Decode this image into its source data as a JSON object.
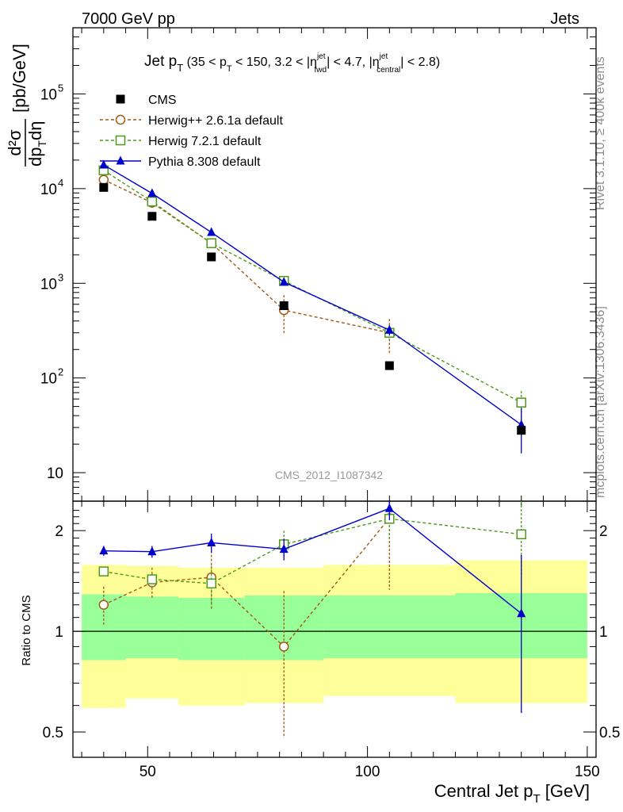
{
  "header": {
    "left": "7000 GeV pp",
    "right": "Jets"
  },
  "side_text": {
    "top": "Rivet 3.1.10, ≥ 400k events",
    "bottom": "mcplots.cern.ch [arXiv:1306.3436]"
  },
  "chart_data": {
    "type": "scatter",
    "title": "Jet pT (35 < pT < 150, 3.2 < |ηfwd jet| < 4.7, |ηcentral jet| < 2.8)",
    "title_parts": {
      "main": "Jet p",
      "main_sub": "T",
      "open": " (35 < p",
      "sub_t": "T",
      "mid1": " < 150, 3.2 < |η",
      "sup_jet1": "jet",
      "sub_fwd": "fwd",
      "mid2": "| < 4.7, |η",
      "sup_jet2": "jet",
      "sub_central": "central",
      "close": "| < 2.8)"
    },
    "watermark": "CMS_2012_I1087342",
    "xlabel": "Central Jet p",
    "xlabel_sub": "T",
    "xlabel_unit": " [GeV]",
    "ylabel_parts": {
      "num": "d²σ",
      "den_dp": "dp",
      "den_sub": "T",
      "den_eta": "dη",
      "unit": "[pb/GeV]"
    },
    "ratio_ylabel": "Ratio to CMS",
    "xlim": [
      33,
      152
    ],
    "ylim": [
      5,
      500000
    ],
    "ylog": true,
    "ratio_ylim": [
      0.42,
      2.45
    ],
    "ratio_ylog": true,
    "x_ticks": [
      {
        "value": 50,
        "label": "50"
      },
      {
        "value": 100,
        "label": "100"
      },
      {
        "value": 150,
        "label": "150"
      }
    ],
    "y_ticks": [
      {
        "value": 10,
        "label": "10"
      },
      {
        "value": 100,
        "label": "10",
        "exp": "2"
      },
      {
        "value": 1000,
        "label": "10",
        "exp": "3"
      },
      {
        "value": 10000,
        "label": "10",
        "exp": "4"
      },
      {
        "value": 100000,
        "label": "10",
        "exp": "5"
      }
    ],
    "ratio_y_ticks": [
      {
        "value": 0.5,
        "label": "0.5"
      },
      {
        "value": 1,
        "label": "1"
      },
      {
        "value": 2,
        "label": "2"
      }
    ],
    "bins": [
      {
        "lo": 35,
        "hi": 45,
        "x": 40,
        "band_inner": [
          0.82,
          1.29
        ],
        "band_outer": [
          0.59,
          1.58
        ]
      },
      {
        "lo": 45,
        "hi": 57,
        "x": 51,
        "band_inner": [
          0.83,
          1.27
        ],
        "band_outer": [
          0.63,
          1.57
        ]
      },
      {
        "lo": 57,
        "hi": 72,
        "x": 64.5,
        "band_inner": [
          0.82,
          1.26
        ],
        "band_outer": [
          0.6,
          1.55
        ]
      },
      {
        "lo": 72,
        "hi": 90,
        "x": 81,
        "band_inner": [
          0.82,
          1.28
        ],
        "band_outer": [
          0.61,
          1.55
        ]
      },
      {
        "lo": 90,
        "hi": 120,
        "x": 105,
        "band_inner": [
          0.83,
          1.28
        ],
        "band_outer": [
          0.64,
          1.58
        ]
      },
      {
        "lo": 120,
        "hi": 150,
        "x": 135,
        "band_inner": [
          0.83,
          1.3
        ],
        "band_outer": [
          0.61,
          1.63
        ]
      }
    ],
    "series": [
      {
        "name": "CMS",
        "style": "data",
        "color": "#000000",
        "marker": "square-filled",
        "x": [
          40,
          51,
          64.5,
          81,
          105,
          135
        ],
        "y": [
          10300,
          5100,
          1900,
          580,
          135,
          28
        ],
        "ratio": [
          1,
          1,
          1,
          1,
          1,
          1
        ]
      },
      {
        "name": "Herwig++ 2.6.1a default",
        "style": "dashed",
        "color": "#a05a14",
        "marker": "circle-open",
        "x": [
          40,
          51,
          64.5,
          81,
          105
        ],
        "y": [
          12400,
          7100,
          2650,
          520,
          300
        ],
        "yerr": [
          700,
          700,
          300,
          230,
          120
        ],
        "ratio": [
          1.2,
          1.4,
          1.45,
          0.9,
          2.18
        ],
        "ratio_err": [
          0.16,
          0.15,
          0.29,
          0.42,
          0.85
        ]
      },
      {
        "name": "Herwig 7.2.1 default",
        "style": "dashed",
        "color": "#4c9a1a",
        "marker": "square-open",
        "x": [
          40,
          51,
          64.5,
          81,
          105,
          135
        ],
        "y": [
          15600,
          7300,
          2650,
          1060,
          300,
          55
        ],
        "yerr": [
          800,
          500,
          150,
          90,
          50,
          18
        ],
        "ratio": [
          1.51,
          1.43,
          1.39,
          1.82,
          2.17,
          1.95
        ],
        "ratio_err": [
          0.05,
          0.06,
          0.18,
          0.18,
          0.3,
          0.5
        ]
      },
      {
        "name": "Pythia 8.308 default",
        "style": "solid",
        "color": "#0000cc",
        "marker": "triangle-filled",
        "x": [
          40,
          51,
          64.5,
          81,
          105,
          135
        ],
        "y": [
          17800,
          8900,
          3450,
          1030,
          320,
          32
        ],
        "yerr": [
          800,
          500,
          150,
          60,
          40,
          16
        ],
        "ratio": [
          1.74,
          1.73,
          1.84,
          1.76,
          2.33,
          1.13
        ],
        "ratio_err": [
          0.06,
          0.07,
          0.12,
          0.13,
          0.18,
          0.56
        ]
      }
    ]
  }
}
